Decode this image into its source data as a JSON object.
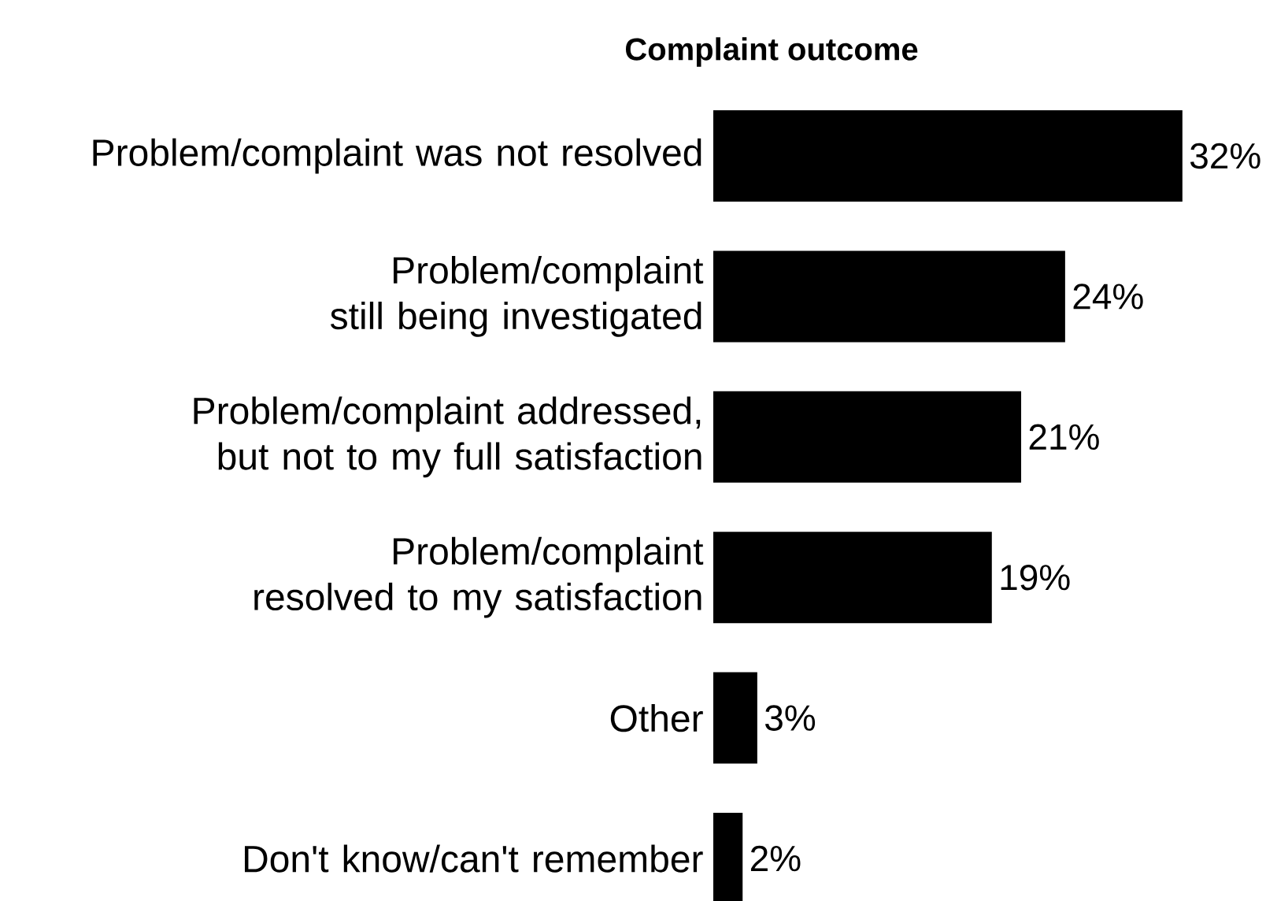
{
  "chart_data": {
    "type": "bar",
    "orientation": "horizontal",
    "title": "Complaint outcome",
    "categories": [
      "Problem/complaint was not resolved",
      "Problem/complaint still being investigated",
      "Problem/complaint addressed, but not to my full satisfaction",
      "Problem/complaint resolved to my satisfaction",
      "Other",
      "Don't know/can't remember"
    ],
    "values": [
      32,
      24,
      21,
      19,
      3,
      2
    ],
    "value_labels": [
      "32%",
      "24%",
      "21%",
      "19%",
      "3%",
      "2%"
    ],
    "color": "#000000"
  }
}
